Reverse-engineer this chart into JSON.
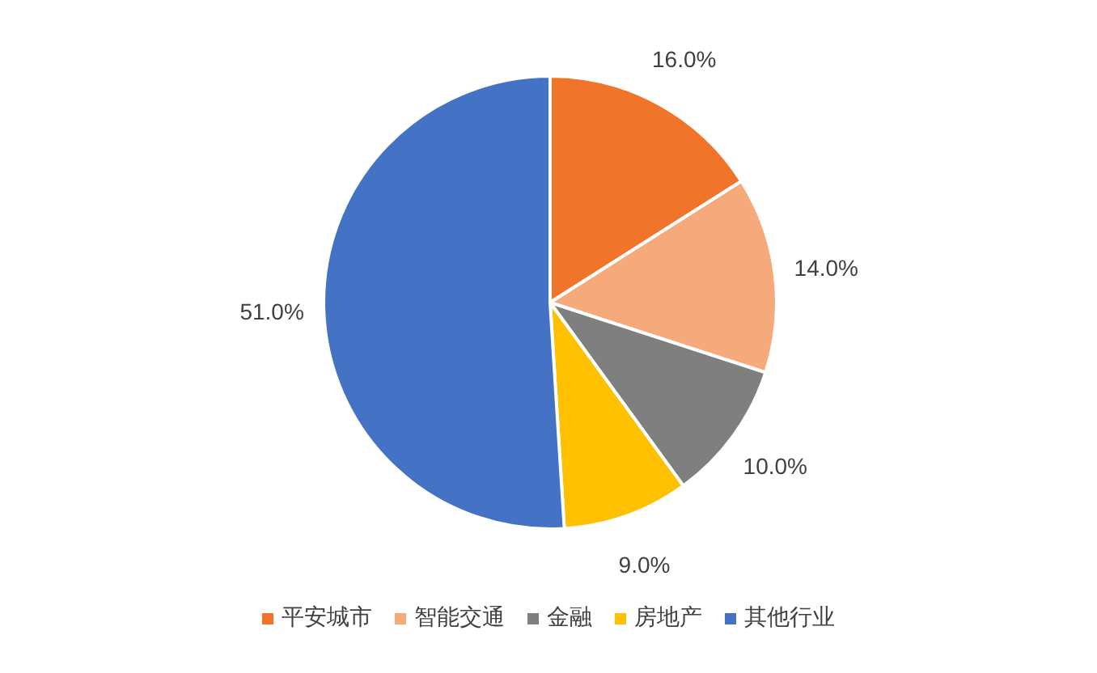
{
  "chart_data": {
    "type": "pie",
    "categories": [
      "平安城市",
      "智能交通",
      "金融",
      "房地产",
      "其他行业"
    ],
    "values": [
      16,
      14,
      10,
      9,
      51
    ],
    "colors": [
      "#f0742a",
      "#f6aa7c",
      "#7f7f7f",
      "#ffc000",
      "#4472c4"
    ],
    "value_labels": [
      "16.0%",
      "14.0%",
      "10.0%",
      "9.0%",
      "51.0%"
    ],
    "legend": "bottom"
  }
}
